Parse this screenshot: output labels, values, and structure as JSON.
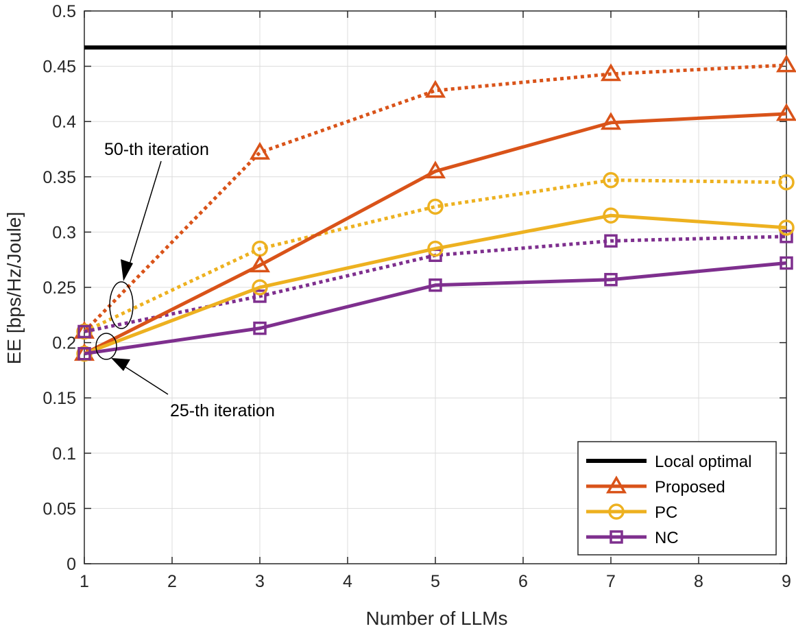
{
  "chart_data": {
    "type": "line",
    "xlabel": "Number of LLMs",
    "ylabel": "EE [bps/Hz/Joule]",
    "xlim": [
      1,
      9
    ],
    "ylim": [
      0,
      0.5
    ],
    "xticks": [
      "1",
      "2",
      "3",
      "4",
      "5",
      "6",
      "7",
      "8",
      "9"
    ],
    "yticks": [
      "0",
      "0.05",
      "0.1",
      "0.15",
      "0.2",
      "0.25",
      "0.3",
      "0.35",
      "0.4",
      "0.45",
      "0.5"
    ],
    "grid": true,
    "legend_position": "bottom-right",
    "legend": [
      "Local optimal",
      "Proposed",
      "PC",
      "NC"
    ],
    "series": [
      {
        "name": "Local optimal",
        "color": "#000000",
        "marker": "none",
        "style": "solid",
        "x": [
          1,
          9
        ],
        "y": [
          0.467,
          0.467
        ]
      },
      {
        "name": "Proposed",
        "iteration": "25-th iteration",
        "color": "#D95319",
        "marker": "triangle",
        "style": "solid",
        "x": [
          1,
          3,
          5,
          7,
          9
        ],
        "y": [
          0.19,
          0.27,
          0.355,
          0.399,
          0.407
        ]
      },
      {
        "name": "Proposed",
        "iteration": "50-th iteration",
        "color": "#D95319",
        "marker": "triangle",
        "style": "dotted",
        "x": [
          1,
          3,
          5,
          7,
          9
        ],
        "y": [
          0.21,
          0.372,
          0.428,
          0.443,
          0.451
        ]
      },
      {
        "name": "PC",
        "iteration": "25-th iteration",
        "color": "#EDB120",
        "marker": "circle",
        "style": "solid",
        "x": [
          1,
          3,
          5,
          7,
          9
        ],
        "y": [
          0.19,
          0.25,
          0.285,
          0.315,
          0.304
        ]
      },
      {
        "name": "PC",
        "iteration": "50-th iteration",
        "color": "#EDB120",
        "marker": "circle",
        "style": "dotted",
        "x": [
          1,
          3,
          5,
          7,
          9
        ],
        "y": [
          0.21,
          0.285,
          0.323,
          0.347,
          0.345
        ]
      },
      {
        "name": "NC",
        "iteration": "25-th iteration",
        "color": "#7E2F8E",
        "marker": "square",
        "style": "solid",
        "x": [
          1,
          3,
          5,
          7,
          9
        ],
        "y": [
          0.19,
          0.213,
          0.252,
          0.257,
          0.272
        ]
      },
      {
        "name": "NC",
        "iteration": "50-th iteration",
        "color": "#7E2F8E",
        "marker": "square",
        "style": "dotted",
        "x": [
          1,
          3,
          5,
          7,
          9
        ],
        "y": [
          0.21,
          0.242,
          0.279,
          0.292,
          0.296
        ]
      }
    ],
    "annotations": [
      "50-th iteration",
      "25-th iteration"
    ]
  }
}
